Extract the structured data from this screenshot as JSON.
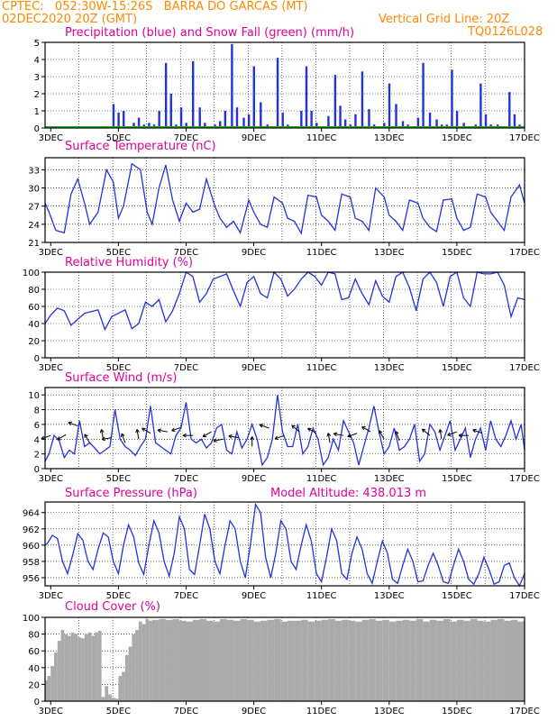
{
  "header": {
    "line1": "CPTEC:   052:30W-15:26S   BARRA DO GARCAS (MT)",
    "line2": "02DEC2020 20Z (GMT)",
    "grid_note": "Vertical Grid Line: 20Z",
    "code": "TQ0126L028"
  },
  "colors": {
    "header": "#ff8800",
    "title": "#e0009a",
    "series": "#2233dd",
    "snow": "#22aa22",
    "wind_arrow": "#000000",
    "cloud": "#aaaaaa"
  },
  "chart_data": [
    {
      "id": "precip",
      "type": "bar",
      "title": "Precipitation (blue) and Snow Fall (green) (mm/h)",
      "ylim": [
        0,
        5
      ],
      "yticks": [
        "0",
        "1",
        "2",
        "3",
        "4",
        "5"
      ],
      "x_start_day": 2.833,
      "x_end_day": 17.0,
      "xtick_labels": [
        "3DEC",
        "5DEC",
        "7DEC",
        "9DEC",
        "11DEC",
        "13DEC",
        "15DEC",
        "17DEC"
      ],
      "xtick_days": [
        3,
        5,
        7,
        9,
        11,
        13,
        15,
        17
      ],
      "series": [
        {
          "name": "Precipitation",
          "color": "#2233dd",
          "x": [
            2.9,
            4.85,
            5.0,
            5.15,
            5.3,
            5.45,
            5.6,
            5.75,
            5.9,
            6.05,
            6.2,
            6.4,
            6.55,
            6.7,
            6.85,
            7.0,
            7.2,
            7.4,
            7.55,
            7.7,
            7.85,
            8.0,
            8.15,
            8.35,
            8.5,
            8.7,
            8.85,
            9.0,
            9.2,
            9.4,
            9.55,
            9.7,
            9.85,
            10.0,
            10.2,
            10.4,
            10.55,
            10.7,
            10.85,
            11.0,
            11.2,
            11.4,
            11.55,
            11.7,
            11.85,
            12.0,
            12.2,
            12.4,
            12.55,
            12.7,
            12.85,
            13.0,
            13.2,
            13.4,
            13.55,
            13.7,
            13.85,
            14.0,
            14.2,
            14.4,
            14.55,
            14.7,
            14.85,
            15.0,
            15.2,
            15.4,
            15.55,
            15.7,
            15.85,
            16.0,
            16.2,
            16.4,
            16.55,
            16.7,
            16.85
          ],
          "values": [
            0.05,
            1.4,
            0.9,
            1.0,
            0.1,
            0.3,
            0.6,
            0.2,
            0.3,
            0.2,
            1.0,
            3.8,
            2.0,
            0.2,
            1.2,
            0.3,
            3.9,
            1.2,
            0.3,
            0.1,
            0.2,
            0.4,
            1.0,
            4.9,
            1.2,
            0.6,
            0.8,
            3.6,
            1.5,
            0.2,
            0.1,
            4.1,
            0.9,
            0.2,
            0.1,
            1.0,
            3.6,
            1.0,
            0.3,
            0.1,
            0.7,
            3.1,
            1.3,
            0.5,
            0.2,
            0.8,
            3.3,
            1.1,
            0.2,
            0.1,
            0.3,
            2.6,
            1.4,
            0.4,
            0.2,
            0.1,
            0.6,
            3.8,
            0.9,
            0.5,
            0.2,
            0.2,
            3.4,
            1.0,
            0.3,
            0.1,
            0.2,
            2.6,
            0.8,
            0.2,
            0.2,
            0.1,
            2.1,
            0.8,
            0.2
          ]
        },
        {
          "name": "Snow Fall",
          "color": "#22aa22",
          "x": [
            2.833,
            17.0
          ],
          "values": [
            0,
            0
          ]
        }
      ]
    },
    {
      "id": "temp",
      "type": "line",
      "title": "Surface Temperature (nC)",
      "ylim": [
        21,
        35
      ],
      "yticks": [
        "21",
        "24",
        "27",
        "30",
        "33"
      ],
      "x": [
        2.833,
        2.95,
        3.15,
        3.4,
        3.6,
        3.8,
        4.0,
        4.15,
        4.4,
        4.65,
        4.85,
        5.0,
        5.15,
        5.4,
        5.65,
        5.85,
        6.0,
        6.2,
        6.4,
        6.6,
        6.8,
        7.0,
        7.2,
        7.4,
        7.6,
        7.85,
        8.0,
        8.2,
        8.4,
        8.6,
        8.85,
        9.0,
        9.2,
        9.4,
        9.6,
        9.85,
        10.0,
        10.2,
        10.4,
        10.6,
        10.85,
        11.0,
        11.2,
        11.4,
        11.6,
        11.85,
        12.0,
        12.2,
        12.4,
        12.6,
        12.85,
        13.0,
        13.2,
        13.4,
        13.6,
        13.85,
        14.0,
        14.2,
        14.4,
        14.6,
        14.85,
        15.0,
        15.2,
        15.4,
        15.6,
        15.85,
        16.0,
        16.2,
        16.4,
        16.6,
        16.85,
        17.0
      ],
      "values": [
        27.5,
        26.0,
        23.0,
        22.6,
        29.0,
        31.5,
        27.5,
        24.0,
        26.0,
        33.0,
        31.0,
        25.0,
        27.0,
        34.0,
        33.0,
        26.0,
        24.0,
        30.0,
        33.8,
        28.0,
        24.5,
        27.5,
        26.0,
        26.5,
        31.5,
        27.0,
        25.0,
        23.5,
        24.5,
        22.6,
        28.0,
        26.0,
        24.0,
        23.5,
        28.5,
        27.5,
        25.0,
        24.5,
        22.5,
        28.8,
        28.5,
        25.5,
        24.5,
        23.0,
        29.0,
        28.5,
        25.0,
        24.5,
        23.0,
        30.0,
        28.5,
        25.5,
        24.5,
        23.0,
        28.0,
        27.5,
        25.0,
        23.5,
        22.8,
        28.0,
        28.2,
        25.0,
        23.0,
        23.5,
        29.0,
        28.5,
        26.0,
        24.5,
        23.0,
        28.5,
        30.5,
        27.5
      ]
    },
    {
      "id": "rh",
      "type": "line",
      "title": "Relative Humidity (%)",
      "ylim": [
        0,
        100
      ],
      "yticks": [
        "0",
        "20",
        "40",
        "60",
        "80",
        "100"
      ],
      "x": [
        2.833,
        3.0,
        3.2,
        3.4,
        3.6,
        3.8,
        4.0,
        4.2,
        4.4,
        4.6,
        4.8,
        5.0,
        5.2,
        5.4,
        5.6,
        5.8,
        6.0,
        6.2,
        6.4,
        6.6,
        6.8,
        7.0,
        7.2,
        7.4,
        7.6,
        7.8,
        8.0,
        8.2,
        8.4,
        8.6,
        8.8,
        9.0,
        9.2,
        9.4,
        9.6,
        9.8,
        10.0,
        10.2,
        10.4,
        10.6,
        10.8,
        11.0,
        11.2,
        11.4,
        11.6,
        11.8,
        12.0,
        12.2,
        12.4,
        12.6,
        12.8,
        13.0,
        13.2,
        13.4,
        13.6,
        13.8,
        14.0,
        14.2,
        14.4,
        14.6,
        14.8,
        15.0,
        15.2,
        15.4,
        15.6,
        15.8,
        16.0,
        16.2,
        16.4,
        16.6,
        16.8,
        17.0
      ],
      "values": [
        40,
        50,
        58,
        55,
        38,
        45,
        52,
        54,
        56,
        33,
        48,
        52,
        56,
        34,
        40,
        65,
        60,
        68,
        42,
        55,
        75,
        100,
        95,
        65,
        75,
        92,
        95,
        98,
        78,
        60,
        88,
        95,
        75,
        70,
        100,
        92,
        72,
        80,
        92,
        100,
        95,
        85,
        100,
        98,
        68,
        70,
        92,
        75,
        62,
        90,
        72,
        65,
        95,
        100,
        82,
        55,
        92,
        100,
        88,
        60,
        95,
        100,
        70,
        60,
        100,
        98,
        98,
        100,
        85,
        48,
        70,
        68
      ]
    },
    {
      "id": "wind",
      "type": "line",
      "title": "Surface Wind (m/s)",
      "ylim": [
        0,
        11
      ],
      "yticks": [
        "0",
        "2",
        "4",
        "6",
        "8",
        "10"
      ],
      "x": [
        2.833,
        2.95,
        3.1,
        3.25,
        3.4,
        3.55,
        3.7,
        3.85,
        4.0,
        4.15,
        4.3,
        4.45,
        4.6,
        4.75,
        4.9,
        5.05,
        5.2,
        5.35,
        5.5,
        5.65,
        5.8,
        5.95,
        6.1,
        6.25,
        6.4,
        6.55,
        6.7,
        6.85,
        7.0,
        7.15,
        7.3,
        7.45,
        7.6,
        7.75,
        7.9,
        8.05,
        8.2,
        8.35,
        8.5,
        8.65,
        8.8,
        8.95,
        9.1,
        9.25,
        9.4,
        9.55,
        9.7,
        9.85,
        10.0,
        10.15,
        10.3,
        10.45,
        10.6,
        10.75,
        10.9,
        11.05,
        11.2,
        11.35,
        11.5,
        11.65,
        11.8,
        11.95,
        12.1,
        12.25,
        12.4,
        12.55,
        12.7,
        12.85,
        13.0,
        13.15,
        13.3,
        13.45,
        13.6,
        13.75,
        13.9,
        14.05,
        14.2,
        14.35,
        14.5,
        14.65,
        14.8,
        14.95,
        15.1,
        15.25,
        15.4,
        15.55,
        15.7,
        15.85,
        16.0,
        16.15,
        16.3,
        16.45,
        16.6,
        16.75,
        16.9,
        17.0
      ],
      "values": [
        1.0,
        2.0,
        4.5,
        3.8,
        1.5,
        2.5,
        2.0,
        6.5,
        3.0,
        3.5,
        2.8,
        2.0,
        2.5,
        3.0,
        8.0,
        4.0,
        3.0,
        2.5,
        1.8,
        3.0,
        4.0,
        8.5,
        3.5,
        3.0,
        2.5,
        2.0,
        4.5,
        5.5,
        9.0,
        4.0,
        3.5,
        4.0,
        2.8,
        3.5,
        5.5,
        6.0,
        2.5,
        2.0,
        5.0,
        2.8,
        4.0,
        6.0,
        4.0,
        0.5,
        1.5,
        4.0,
        10.0,
        5.0,
        3.0,
        3.0,
        6.0,
        2.0,
        3.0,
        5.5,
        4.0,
        0.5,
        1.5,
        4.0,
        2.5,
        6.5,
        5.0,
        3.5,
        0.5,
        3.0,
        5.5,
        8.5,
        5.0,
        2.0,
        3.0,
        5.5,
        2.5,
        3.0,
        4.0,
        6.0,
        1.0,
        2.0,
        6.0,
        5.0,
        2.5,
        4.5,
        6.5,
        2.5,
        4.0,
        5.5,
        1.5,
        4.0,
        5.5,
        2.5,
        6.5,
        4.0,
        3.0,
        4.5,
        6.5,
        4.0,
        6.0,
        2.5
      ],
      "arrows": [
        {
          "day": 3.0,
          "speed": 4.5,
          "dir": 200
        },
        {
          "day": 3.45,
          "speed": 4.6,
          "dir": 210
        },
        {
          "day": 3.8,
          "speed": 5.8,
          "dir": 160
        },
        {
          "day": 4.15,
          "speed": 3.5,
          "dir": 120
        },
        {
          "day": 4.55,
          "speed": 4.0,
          "dir": 100
        },
        {
          "day": 4.8,
          "speed": 4.2,
          "dir": 190
        },
        {
          "day": 5.2,
          "speed": 3.5,
          "dir": 110
        },
        {
          "day": 5.6,
          "speed": 4.0,
          "dir": 100
        },
        {
          "day": 5.95,
          "speed": 4.8,
          "dir": 150
        },
        {
          "day": 6.45,
          "speed": 5.0,
          "dir": 170
        },
        {
          "day": 6.85,
          "speed": 5.6,
          "dir": 200
        },
        {
          "day": 7.2,
          "speed": 4.5,
          "dir": 180
        },
        {
          "day": 7.75,
          "speed": 5.0,
          "dir": 210
        },
        {
          "day": 8.1,
          "speed": 4.0,
          "dir": 190
        },
        {
          "day": 8.55,
          "speed": 4.2,
          "dir": 170
        },
        {
          "day": 8.95,
          "speed": 3.0,
          "dir": 90
        },
        {
          "day": 9.45,
          "speed": 5.5,
          "dir": 160
        },
        {
          "day": 9.9,
          "speed": 4.5,
          "dir": 200
        },
        {
          "day": 10.35,
          "speed": 5.0,
          "dir": 140
        },
        {
          "day": 10.85,
          "speed": 4.8,
          "dir": 150
        },
        {
          "day": 11.25,
          "speed": 3.5,
          "dir": 100
        },
        {
          "day": 11.65,
          "speed": 4.5,
          "dir": 170
        },
        {
          "day": 12.05,
          "speed": 4.8,
          "dir": 200
        },
        {
          "day": 12.45,
          "speed": 5.0,
          "dir": 150
        },
        {
          "day": 12.85,
          "speed": 4.0,
          "dir": 120
        },
        {
          "day": 13.3,
          "speed": 3.8,
          "dir": 110
        },
        {
          "day": 14.2,
          "speed": 4.5,
          "dir": 140
        },
        {
          "day": 14.55,
          "speed": 4.0,
          "dir": 100
        },
        {
          "day": 15.0,
          "speed": 5.0,
          "dir": 200
        },
        {
          "day": 15.35,
          "speed": 4.5,
          "dir": 180
        },
        {
          "day": 15.75,
          "speed": 4.8,
          "dir": 160
        }
      ]
    },
    {
      "id": "pres",
      "type": "line",
      "title": "Surface Pressure (hPa)",
      "annotation": "Model Altitude: 438.013 m",
      "ylim": [
        955,
        965.3
      ],
      "yticks": [
        "956",
        "958",
        "960",
        "962",
        "964"
      ],
      "x": [
        2.833,
        2.9,
        3.05,
        3.2,
        3.35,
        3.5,
        3.65,
        3.8,
        3.95,
        4.1,
        4.25,
        4.4,
        4.55,
        4.7,
        4.85,
        5.0,
        5.15,
        5.3,
        5.45,
        5.6,
        5.75,
        5.9,
        6.05,
        6.2,
        6.35,
        6.5,
        6.65,
        6.8,
        6.95,
        7.1,
        7.25,
        7.4,
        7.55,
        7.7,
        7.85,
        8.0,
        8.15,
        8.3,
        8.45,
        8.6,
        8.75,
        8.9,
        9.05,
        9.2,
        9.35,
        9.5,
        9.65,
        9.8,
        9.95,
        10.1,
        10.25,
        10.4,
        10.55,
        10.7,
        10.85,
        11.0,
        11.15,
        11.3,
        11.45,
        11.6,
        11.75,
        11.9,
        12.05,
        12.2,
        12.35,
        12.5,
        12.65,
        12.8,
        12.95,
        13.1,
        13.25,
        13.4,
        13.55,
        13.7,
        13.85,
        14.0,
        14.15,
        14.3,
        14.45,
        14.6,
        14.75,
        14.9,
        15.05,
        15.2,
        15.35,
        15.5,
        15.65,
        15.8,
        15.95,
        16.1,
        16.25,
        16.4,
        16.55,
        16.7,
        16.85,
        17.0
      ],
      "values": [
        960.0,
        960.2,
        961.2,
        960.8,
        958.0,
        956.5,
        958.8,
        961.4,
        960.6,
        958.0,
        957.0,
        959.5,
        961.5,
        961.0,
        958.0,
        956.5,
        960.0,
        962.5,
        961.0,
        957.8,
        956.4,
        960.0,
        963.0,
        961.5,
        958.0,
        956.2,
        959.0,
        963.5,
        962.0,
        957.0,
        956.4,
        960.0,
        963.8,
        962.0,
        958.0,
        956.5,
        960.0,
        963.0,
        962.0,
        958.0,
        956.0,
        960.0,
        965.0,
        964.0,
        958.5,
        956.0,
        959.0,
        963.0,
        962.0,
        958.0,
        957.0,
        960.0,
        962.5,
        960.5,
        956.5,
        955.5,
        958.5,
        962.0,
        960.5,
        956.5,
        955.8,
        959.0,
        961.0,
        959.5,
        956.5,
        955.3,
        958.0,
        960.5,
        959.0,
        955.8,
        955.3,
        957.5,
        959.5,
        958.0,
        955.5,
        955.6,
        957.5,
        959.0,
        957.5,
        955.5,
        955.3,
        957.5,
        959.5,
        958.0,
        955.8,
        955.2,
        956.5,
        958.5,
        957.0,
        955.2,
        955.5,
        957.5,
        957.8,
        956.0,
        955.0,
        956.5
      ]
    },
    {
      "id": "cloud",
      "type": "bar",
      "title": "Cloud Cover (%)",
      "ylim": [
        0,
        100
      ],
      "yticks": [
        "0",
        "20",
        "40",
        "60",
        "80",
        "100"
      ],
      "x": [
        2.833,
        2.9,
        3.0,
        3.1,
        3.2,
        3.3,
        3.4,
        3.5,
        3.6,
        3.7,
        3.8,
        3.9,
        4.0,
        4.1,
        4.2,
        4.3,
        4.4,
        4.5,
        4.6,
        4.7,
        4.8,
        4.9,
        5.0,
        5.1,
        5.2,
        5.3,
        5.4,
        5.5,
        5.6,
        5.7,
        5.8,
        5.9,
        6.0,
        6.2,
        6.4,
        6.6,
        6.8,
        7.0,
        7.2,
        7.4,
        7.6,
        7.8,
        8.0,
        8.2,
        8.4,
        8.6,
        8.8,
        9.0,
        9.2,
        9.4,
        9.6,
        9.8,
        10.0,
        10.2,
        10.4,
        10.6,
        10.8,
        11.0,
        11.2,
        11.4,
        11.6,
        11.8,
        12.0,
        12.2,
        12.4,
        12.6,
        12.8,
        13.0,
        13.2,
        13.4,
        13.6,
        13.8,
        14.0,
        14.2,
        14.4,
        14.6,
        14.8,
        15.0,
        15.2,
        15.4,
        15.6,
        15.8,
        16.0,
        16.2,
        16.4,
        16.6,
        16.8,
        16.95
      ],
      "values": [
        25,
        30,
        42,
        58,
        72,
        85,
        80,
        78,
        82,
        80,
        76,
        75,
        80,
        82,
        78,
        82,
        84,
        5,
        18,
        8,
        4,
        3,
        30,
        35,
        55,
        65,
        80,
        85,
        95,
        92,
        98,
        96,
        97,
        98,
        97,
        98,
        96,
        95,
        97,
        98,
        96,
        95,
        98,
        97,
        96,
        98,
        97,
        95,
        96,
        97,
        98,
        95,
        96,
        96,
        97,
        95,
        96,
        97,
        98,
        96,
        97,
        96,
        95,
        97,
        98,
        96,
        97,
        95,
        96,
        97,
        96,
        98,
        95,
        97,
        96,
        98,
        95,
        97,
        96,
        98,
        96,
        95,
        97,
        98,
        96,
        97,
        95,
        96
      ]
    }
  ]
}
